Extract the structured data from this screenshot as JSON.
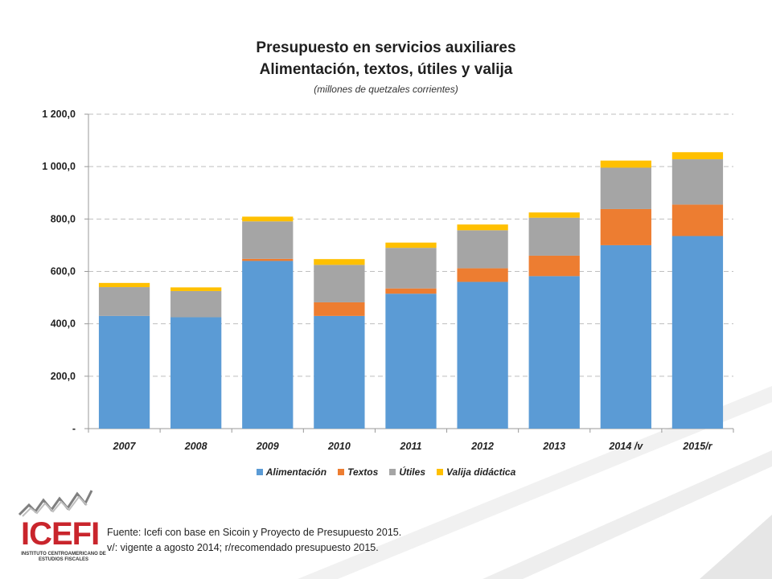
{
  "title_lines": [
    "Presupuesto en servicios auxiliares",
    "Alimentación, textos, útiles y valija"
  ],
  "subtitle": "(millones de quetzales corrientes)",
  "colors": {
    "alimentacion": "#5b9bd5",
    "textos": "#ed7d31",
    "utiles": "#a5a5a5",
    "valija": "#ffc000",
    "grid": "#bfbfbf",
    "brand_red": "#c9252c",
    "brand_gray": "#7f7f7f"
  },
  "chart_data": {
    "type": "bar",
    "stacked": true,
    "title": "Presupuesto en servicios auxiliares Alimentación, textos, útiles y valija",
    "subtitle": "(millones de quetzales corrientes)",
    "categories": [
      "2007",
      "2008",
      "2009",
      "2010",
      "2011",
      "2012",
      "2013",
      "2014 /v",
      "2015/r"
    ],
    "series": [
      {
        "name": "Alimentación",
        "values": [
          430,
          425,
          640,
          430,
          515,
          560,
          582,
          700,
          735
        ]
      },
      {
        "name": "Textos",
        "values": [
          0,
          0,
          8,
          52,
          20,
          52,
          78,
          138,
          120
        ]
      },
      {
        "name": "Útiles",
        "values": [
          110,
          100,
          143,
          143,
          155,
          145,
          145,
          158,
          173
        ]
      },
      {
        "name": "Valija didáctica",
        "values": [
          16,
          14,
          18,
          22,
          20,
          22,
          20,
          27,
          27
        ]
      }
    ],
    "ylim": [
      0,
      1200
    ],
    "yticks": [
      0,
      200,
      400,
      600,
      800,
      1000,
      1200
    ],
    "ytick_labels": [
      "-",
      "200,0",
      "400,0",
      "600,0",
      "800,0",
      "1 000,0",
      "1 200,0"
    ],
    "grid": true,
    "legend_position": "bottom"
  },
  "legend": [
    "Alimentación",
    "Textos",
    "Útiles",
    "Valija didáctica"
  ],
  "logo": {
    "text": "ICEFI",
    "subtext": "INSTITUTO CENTROAMERICANO DE ESTUDIOS FISCALES"
  },
  "source": {
    "line1": "Fuente: Icefi con base en Sicoin y Proyecto de Presupuesto 2015.",
    "line2": "v/: vigente a agosto 2014; r/recomendado presupuesto 2015."
  }
}
